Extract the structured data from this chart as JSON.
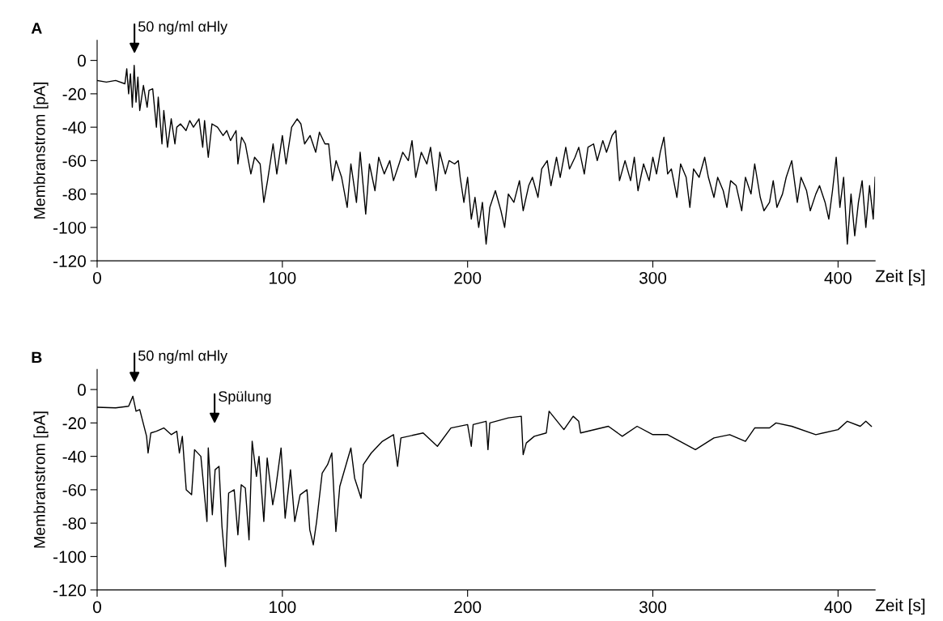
{
  "chart_data": [
    {
      "type": "line",
      "title": "A",
      "xlabel": "Zeit [s]",
      "ylabel": "Membranstrom [pA]",
      "xlim": [
        0,
        420
      ],
      "ylim": [
        -120,
        12
      ],
      "xticks": [
        0,
        100,
        200,
        300,
        400
      ],
      "yticks": [
        0,
        -20,
        -40,
        -60,
        -80,
        -100,
        -120
      ],
      "grid": false,
      "marker": "none",
      "line_style": "solid",
      "annotations": [
        "50 ng/ml αHly"
      ],
      "series": [
        {
          "color": "#000000",
          "x": [
            0,
            5,
            10,
            15,
            16,
            17,
            18,
            19,
            20,
            21,
            22,
            23,
            25,
            27,
            28,
            30,
            32,
            33,
            35,
            36,
            38,
            40,
            42,
            43,
            45,
            48,
            50,
            52,
            55,
            57,
            58,
            60,
            62,
            65,
            68,
            70,
            72,
            75,
            76,
            78,
            80,
            83,
            85,
            88,
            90,
            92,
            95,
            97,
            100,
            102,
            105,
            108,
            110,
            112,
            115,
            118,
            120,
            123,
            125,
            127,
            129,
            132,
            135,
            137,
            140,
            142,
            145,
            147,
            150,
            152,
            155,
            158,
            160,
            163,
            165,
            168,
            170,
            172,
            175,
            178,
            180,
            183,
            185,
            188,
            190,
            193,
            195,
            196,
            198,
            200,
            202,
            204,
            206,
            208,
            210,
            212,
            215,
            218,
            220,
            222,
            225,
            228,
            230,
            233,
            235,
            238,
            240,
            243,
            245,
            248,
            250,
            253,
            255,
            258,
            260,
            263,
            265,
            268,
            270,
            273,
            275,
            278,
            280,
            282,
            285,
            288,
            290,
            292,
            295,
            298,
            300,
            302,
            304,
            306,
            308,
            310,
            313,
            315,
            318,
            320,
            322,
            325,
            328,
            330,
            333,
            335,
            338,
            340,
            342,
            345,
            348,
            350,
            353,
            355,
            358,
            360,
            363,
            365,
            367,
            370,
            372,
            375,
            378,
            380,
            383,
            385,
            388,
            390,
            393,
            395,
            397,
            399,
            401,
            403,
            405,
            407,
            409,
            411,
            413,
            415,
            417,
            419,
            420
          ],
          "values": [
            -12,
            -13,
            -12,
            -14,
            -5,
            -20,
            -8,
            -28,
            -3,
            -25,
            -10,
            -30,
            -15,
            -28,
            -18,
            -17,
            -40,
            -22,
            -50,
            -30,
            -52,
            -35,
            -50,
            -40,
            -38,
            -42,
            -36,
            -40,
            -35,
            -52,
            -36,
            -58,
            -38,
            -40,
            -45,
            -42,
            -48,
            -42,
            -62,
            -46,
            -50,
            -68,
            -58,
            -62,
            -85,
            -72,
            -50,
            -68,
            -45,
            -62,
            -40,
            -35,
            -38,
            -50,
            -45,
            -55,
            -43,
            -50,
            -50,
            -72,
            -60,
            -70,
            -88,
            -62,
            -85,
            -55,
            -92,
            -62,
            -78,
            -58,
            -68,
            -60,
            -72,
            -62,
            -55,
            -60,
            -48,
            -70,
            -55,
            -62,
            -52,
            -78,
            -55,
            -68,
            -60,
            -62,
            -60,
            -70,
            -85,
            -70,
            -95,
            -82,
            -100,
            -85,
            -110,
            -88,
            -78,
            -90,
            -100,
            -80,
            -85,
            -72,
            -90,
            -75,
            -70,
            -82,
            -65,
            -60,
            -75,
            -58,
            -70,
            -52,
            -65,
            -58,
            -52,
            -68,
            -52,
            -50,
            -60,
            -48,
            -55,
            -45,
            -42,
            -72,
            -60,
            -72,
            -58,
            -78,
            -62,
            -72,
            -58,
            -68,
            -55,
            -46,
            -68,
            -65,
            -82,
            -62,
            -70,
            -88,
            -65,
            -70,
            -58,
            -70,
            -82,
            -70,
            -78,
            -88,
            -72,
            -75,
            -90,
            -70,
            -80,
            -62,
            -82,
            -90,
            -85,
            -72,
            -88,
            -80,
            -70,
            -60,
            -85,
            -70,
            -78,
            -90,
            -80,
            -75,
            -85,
            -95,
            -78,
            -58,
            -88,
            -70,
            -110,
            -80,
            -105,
            -85,
            -72,
            -100,
            -75,
            -95,
            -70
          ]
        }
      ]
    },
    {
      "type": "line",
      "title": "B",
      "xlabel": "Zeit [s]",
      "ylabel": "Membranstrom [pA]",
      "xlim": [
        0,
        420
      ],
      "ylim": [
        -120,
        12
      ],
      "xticks": [
        0,
        100,
        200,
        300,
        400
      ],
      "yticks": [
        0,
        -20,
        -40,
        -60,
        -80,
        -100,
        -120
      ],
      "grid": false,
      "marker": "none",
      "line_style": "solid",
      "annotations": [
        "50 ng/ml αHly",
        "Spülung"
      ],
      "series": [
        {
          "color": "#000000",
          "x": [
            0,
            10,
            17,
            19.3,
            21,
            23,
            26.7,
            27.5,
            29,
            32,
            36,
            40,
            43,
            44.4,
            46,
            48.1,
            51,
            52.6,
            56,
            59.3,
            60,
            62.2,
            63.7,
            65.8,
            67.4,
            69.3,
            71,
            74,
            76,
            77.8,
            80,
            82,
            83.7,
            86,
            87.4,
            90,
            91.8,
            94.8,
            96.3,
            99.3,
            101.5,
            104.4,
            106.7,
            109.6,
            113.3,
            114.8,
            116.7,
            118.5,
            121.5,
            124.4,
            126.7,
            128.9,
            131,
            137,
            139,
            142.5,
            143.7,
            148,
            154,
            160,
            162.2,
            164,
            176,
            183.7,
            191,
            200,
            202,
            203,
            210,
            211,
            212,
            222,
            229,
            230,
            231.7,
            236,
            242.5,
            244,
            252,
            257,
            260,
            261,
            276,
            283.5,
            291.5,
            300,
            308,
            323,
            333,
            341.5,
            350,
            355,
            363,
            366.5,
            375,
            388,
            400,
            405,
            412,
            415,
            418
          ],
          "values": [
            -10.6,
            -11,
            -10,
            -4,
            -13,
            -12,
            -28,
            -38,
            -26,
            -25,
            -23,
            -27,
            -25,
            -38,
            -28,
            -60,
            -63,
            -36,
            -40,
            -79,
            -35,
            -75,
            -48,
            -46,
            -82,
            -106,
            -62,
            -60,
            -87,
            -57,
            -59,
            -90,
            -31,
            -52,
            -40,
            -79,
            -41,
            -69,
            -60,
            -35,
            -77,
            -48,
            -79,
            -63,
            -60,
            -84,
            -93,
            -79,
            -50,
            -45,
            -38,
            -85,
            -58,
            -35,
            -53,
            -65,
            -45,
            -38,
            -31,
            -27,
            -46,
            -29,
            -26,
            -34,
            -23,
            -21,
            -34,
            -21,
            -19,
            -36,
            -20,
            -17,
            -16,
            -39,
            -32,
            -28,
            -26,
            -13,
            -24,
            -16,
            -19,
            -26,
            -22,
            -28,
            -22,
            -27,
            -27,
            -36,
            -29,
            -27,
            -31,
            -23,
            -23,
            -20,
            -22,
            -27,
            -24,
            -19,
            -22,
            -19,
            -22
          ]
        }
      ]
    }
  ]
}
